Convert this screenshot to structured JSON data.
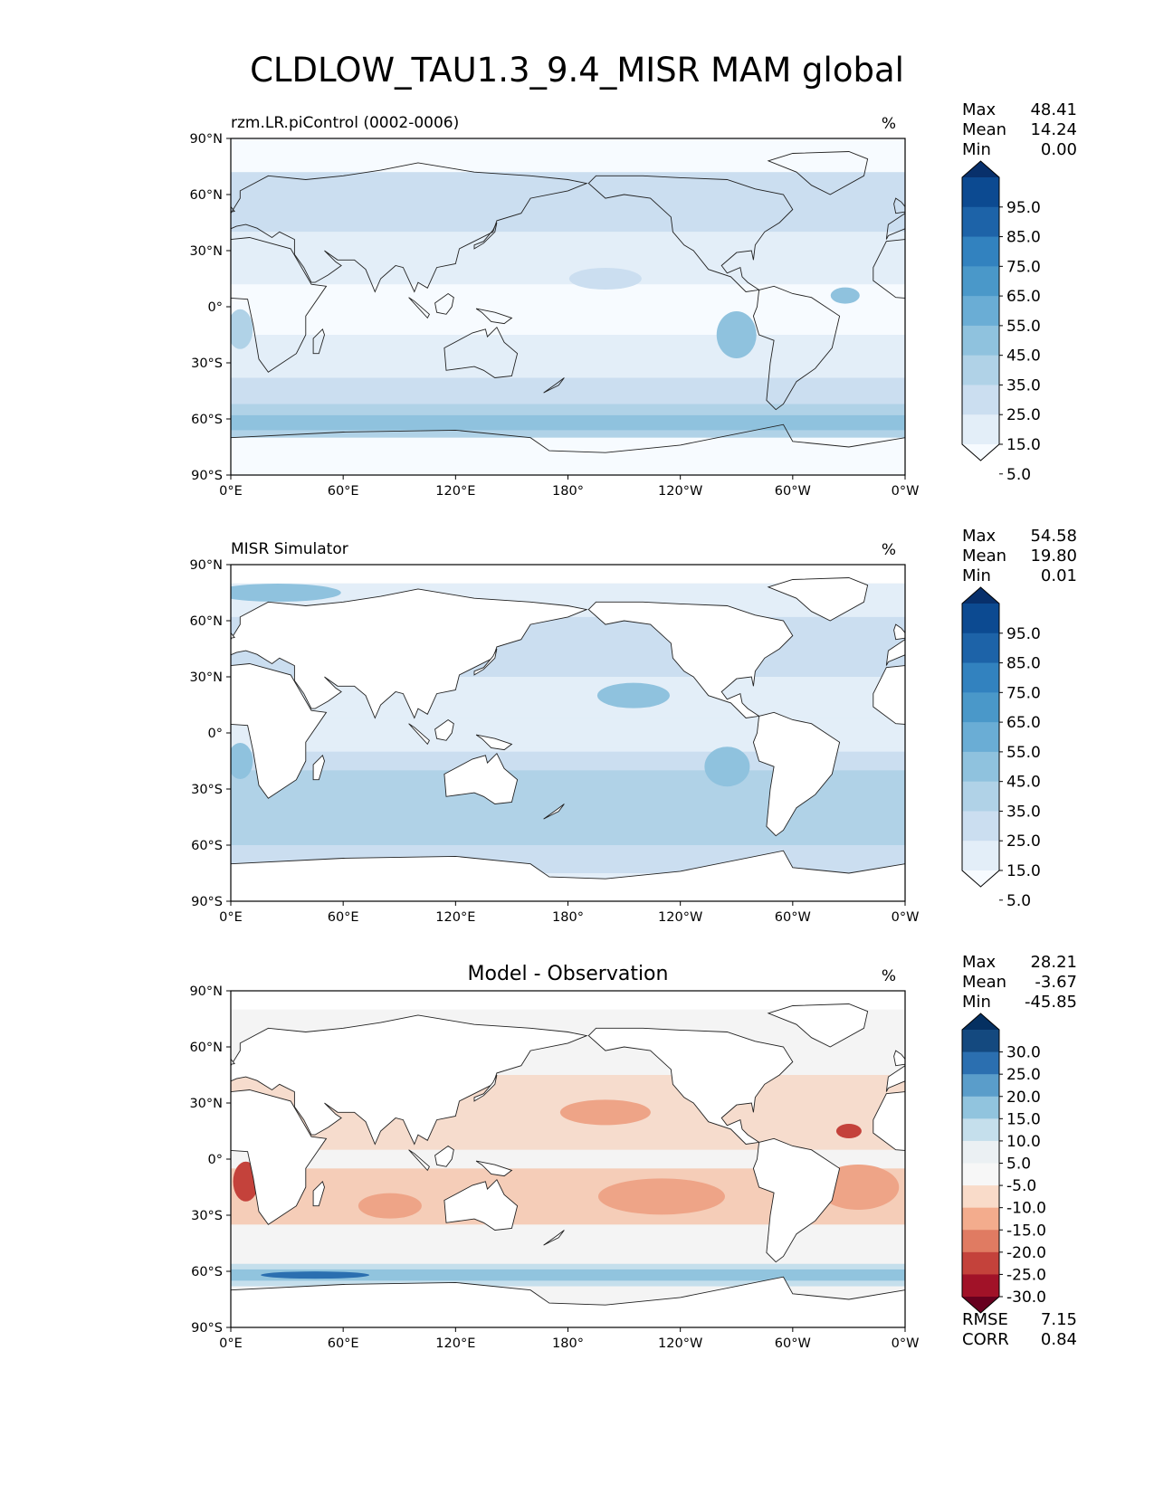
{
  "page": {
    "title": "CLDLOW_TAU1.3_9.4_MISR MAM global"
  },
  "axes": {
    "lat_ticks": [
      "90°N",
      "60°N",
      "30°N",
      "0°",
      "30°S",
      "60°S",
      "90°S"
    ],
    "lon_ticks": [
      "0°E",
      "60°E",
      "120°E",
      "180°",
      "120°W",
      "60°W",
      "0°W"
    ]
  },
  "chart_data": [
    {
      "type": "heatmap",
      "title": "rzm.LR.piControl (0002-0006)",
      "units": "%",
      "stats": [
        {
          "label": "Max",
          "value": "48.41"
        },
        {
          "label": "Mean",
          "value": "14.24"
        },
        {
          "label": "Min",
          "value": "0.00"
        }
      ],
      "colorbar": {
        "levels": [
          "95.0",
          "85.0",
          "75.0",
          "65.0",
          "55.0",
          "45.0",
          "35.0",
          "25.0",
          "15.0",
          "5.0"
        ],
        "colors": [
          "#08306b",
          "#0c4a91",
          "#1d63a8",
          "#3282bf",
          "#4a98c9",
          "#6aadd5",
          "#8fc2de",
          "#b0d2e7",
          "#cbdef0",
          "#e3eef8",
          "#f7fbff"
        ]
      },
      "xlim": [
        0,
        360
      ],
      "ylim": [
        -90,
        90
      ]
    },
    {
      "type": "heatmap",
      "title": "MISR Simulator",
      "units": "%",
      "stats": [
        {
          "label": "Max",
          "value": "54.58"
        },
        {
          "label": "Mean",
          "value": "19.80"
        },
        {
          "label": "Min",
          "value": "0.01"
        }
      ],
      "colorbar": {
        "levels": [
          "95.0",
          "85.0",
          "75.0",
          "65.0",
          "55.0",
          "45.0",
          "35.0",
          "25.0",
          "15.0",
          "5.0"
        ],
        "colors": [
          "#08306b",
          "#0c4a91",
          "#1d63a8",
          "#3282bf",
          "#4a98c9",
          "#6aadd5",
          "#8fc2de",
          "#b0d2e7",
          "#cbdef0",
          "#e3eef8",
          "#f7fbff"
        ]
      },
      "xlim": [
        0,
        360
      ],
      "ylim": [
        -90,
        90
      ]
    },
    {
      "type": "heatmap",
      "title": "Model - Observation",
      "units": "%",
      "stats": [
        {
          "label": "Max",
          "value": "28.21"
        },
        {
          "label": "Mean",
          "value": "-3.67"
        },
        {
          "label": "Min",
          "value": "-45.85"
        }
      ],
      "colorbar": {
        "levels": [
          "30.0",
          "25.0",
          "20.0",
          "15.0",
          "10.0",
          "5.0",
          "-5.0",
          "-10.0",
          "-15.0",
          "-20.0",
          "-25.0",
          "-30.0"
        ],
        "colors": [
          "#053061",
          "#14497f",
          "#2b6fb0",
          "#5a9dca",
          "#91c4de",
          "#c5dfec",
          "#ebf0f3",
          "#f7f7f7",
          "#f9dbc9",
          "#f3ac8d",
          "#e07b62",
          "#c4423b",
          "#a11228",
          "#67001f"
        ]
      },
      "metrics": [
        {
          "label": "RMSE",
          "value": "7.15"
        },
        {
          "label": "CORR",
          "value": "0.84"
        }
      ],
      "xlim": [
        0,
        360
      ],
      "ylim": [
        -90,
        90
      ]
    }
  ]
}
